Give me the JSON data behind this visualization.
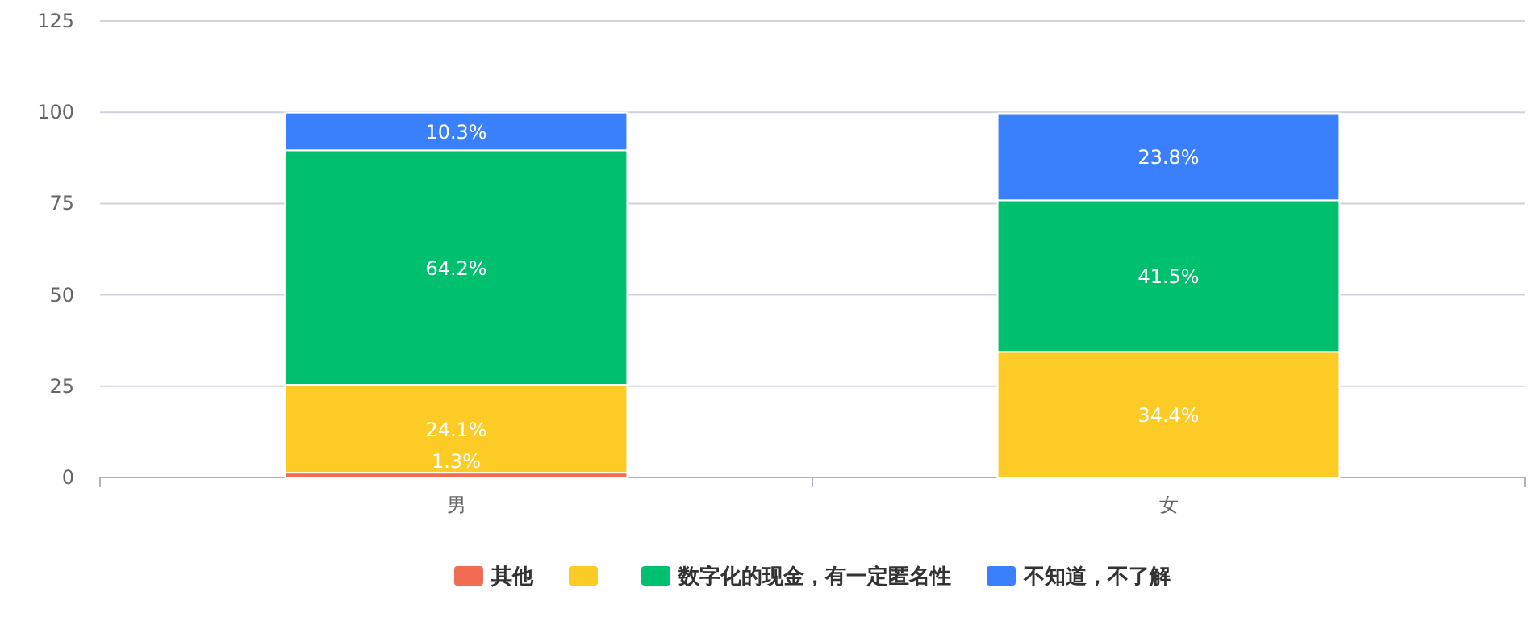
{
  "chart_data": {
    "type": "bar",
    "stacked": true,
    "categories": [
      "男",
      "女"
    ],
    "ylim": [
      0,
      125
    ],
    "yticks": [
      0,
      25,
      50,
      75,
      100,
      125
    ],
    "grid": "y",
    "legend": "bottom",
    "series": [
      {
        "name": "其他",
        "color": "#f26b53",
        "values": [
          1.3,
          null
        ],
        "value_labels": [
          "1.3%",
          null
        ]
      },
      {
        "color": "#fdcb26",
        "values": [
          24.1,
          34.4
        ],
        "value_labels": [
          "24.1%",
          "34.4%"
        ]
      },
      {
        "name": "数字化的现金，有一定匿名性",
        "color": "#00bf6f",
        "values": [
          64.2,
          41.5
        ],
        "value_labels": [
          "64.2%",
          "41.5%"
        ]
      },
      {
        "name": "不知道，不了解",
        "color": "#3a7ffb",
        "values": [
          10.3,
          23.8
        ],
        "value_labels": [
          "10.3%",
          "23.8%"
        ]
      }
    ]
  }
}
